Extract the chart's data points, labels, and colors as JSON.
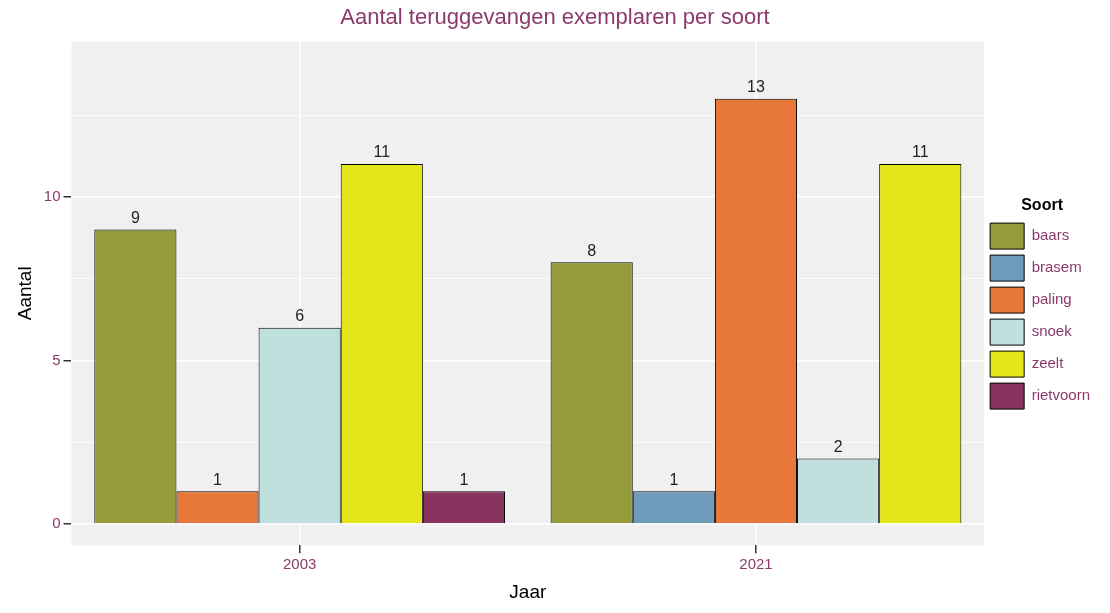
{
  "chart_data": {
    "type": "bar",
    "title": "Aantal teruggevangen exemplaren per soort",
    "xlabel": "Jaar",
    "ylabel": "Aantal",
    "legend_title": "Soort",
    "categories": [
      "2003",
      "2021"
    ],
    "series": [
      {
        "name": "baars",
        "color": "#959a3a",
        "values": [
          9,
          8
        ]
      },
      {
        "name": "brasem",
        "color": "#6f9bbb",
        "values": [
          null,
          1
        ]
      },
      {
        "name": "paling",
        "color": "#e8773a",
        "values": [
          1,
          13
        ]
      },
      {
        "name": "snoek",
        "color": "#bfe0dc",
        "values": [
          6,
          2
        ]
      },
      {
        "name": "zeelt",
        "color": "#e5e619",
        "values": [
          11,
          11
        ]
      },
      {
        "name": "rietvoorn",
        "color": "#88335e",
        "values": [
          1,
          null
        ]
      }
    ],
    "ylim": [
      -0.65,
      14.75
    ],
    "yticks": [
      0,
      {
        "value": 2.5,
        "label": null
      },
      5,
      {
        "value": 7.5,
        "label": null
      },
      10,
      {
        "value": 12.5,
        "label": null
      }
    ],
    "grid": true,
    "legend": "right",
    "data_labels": true
  }
}
